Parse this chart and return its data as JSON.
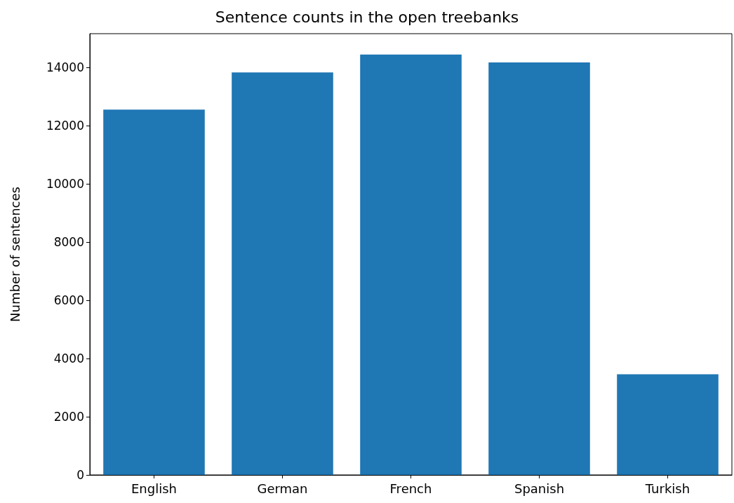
{
  "chart_data": {
    "type": "bar",
    "title": "Sentence counts in the open treebanks",
    "ylabel": "Number of sentences",
    "categories": [
      "English",
      "German",
      "French",
      "Spanish",
      "Turkish"
    ],
    "values": [
      12550,
      13830,
      14440,
      14170,
      3460
    ],
    "color": "#1f77b4",
    "ylim": [
      0,
      15160
    ],
    "yticks": [
      0,
      2000,
      4000,
      6000,
      8000,
      10000,
      12000,
      14000
    ],
    "grid": false
  }
}
